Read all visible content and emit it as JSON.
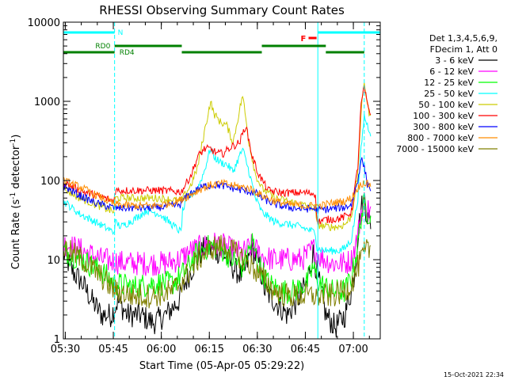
{
  "chart_data": {
    "type": "line",
    "title": "RHESSI Observing Summary Count Rates",
    "xlabel": "Start Time (05-Apr-05 05:29:22)",
    "ylabel_main": "Count Rate (s",
    "ylabel_sup": "-1",
    "ylabel_mid": " detector",
    "ylabel_sup2": "-1",
    "ylabel_end": ")",
    "footer": "15-Oct-2021 22:34",
    "y_scale": "log",
    "ylim": [
      1,
      10000
    ],
    "xlim_minutes": [
      0,
      99
    ],
    "x_ticks": [
      {
        "m": 0.6,
        "label": "05:30"
      },
      {
        "m": 15.6,
        "label": "05:45"
      },
      {
        "m": 30.6,
        "label": "06:00"
      },
      {
        "m": 45.6,
        "label": "06:15"
      },
      {
        "m": 60.6,
        "label": "06:30"
      },
      {
        "m": 75.6,
        "label": "06:45"
      },
      {
        "m": 90.6,
        "label": "07:00"
      }
    ],
    "y_ticks": [
      {
        "v": 1,
        "label": "1"
      },
      {
        "v": 10,
        "label": "10"
      },
      {
        "v": 100,
        "label": "100"
      },
      {
        "v": 1000,
        "label": "1000"
      },
      {
        "v": 10000,
        "label": "10000"
      }
    ],
    "legend_header": [
      "Det 1,3,4,5,6,9,",
      "FDecim 1, Att 0"
    ],
    "legend_position": "right",
    "series": [
      {
        "name": "3 - 6 keV",
        "color": "#000000",
        "points": [
          [
            0,
            12
          ],
          [
            3,
            7
          ],
          [
            6,
            5
          ],
          [
            9,
            3
          ],
          [
            12,
            2
          ],
          [
            15,
            2
          ],
          [
            17,
            3
          ],
          [
            20,
            2
          ],
          [
            24,
            2
          ],
          [
            28,
            1.6
          ],
          [
            32,
            2
          ],
          [
            36,
            3
          ],
          [
            38,
            5
          ],
          [
            41,
            9
          ],
          [
            44,
            14
          ],
          [
            47,
            13
          ],
          [
            50,
            12
          ],
          [
            53,
            8
          ],
          [
            56,
            6
          ],
          [
            59,
            14
          ],
          [
            61,
            9
          ],
          [
            63,
            4
          ],
          [
            66,
            3
          ],
          [
            70,
            2
          ],
          [
            73,
            3
          ],
          [
            76,
            5
          ],
          [
            78,
            12
          ],
          [
            80,
            5
          ],
          [
            82,
            2
          ],
          [
            85,
            1.4
          ],
          [
            88,
            2
          ],
          [
            89,
            3
          ],
          [
            90,
            4
          ],
          [
            91,
            7
          ],
          [
            92,
            20
          ],
          [
            93,
            45
          ],
          [
            94,
            55
          ],
          [
            95,
            35
          ],
          [
            96,
            30
          ]
        ]
      },
      {
        "name": "6 - 12 keV",
        "color": "#ff00ff",
        "points": [
          [
            0,
            16
          ],
          [
            6,
            13
          ],
          [
            12,
            10
          ],
          [
            16,
            9.5
          ],
          [
            20,
            9
          ],
          [
            26,
            9
          ],
          [
            32,
            9
          ],
          [
            36,
            10
          ],
          [
            40,
            13
          ],
          [
            44,
            15
          ],
          [
            47,
            16
          ],
          [
            50,
            15
          ],
          [
            53,
            13
          ],
          [
            56,
            12
          ],
          [
            59,
            15
          ],
          [
            62,
            11
          ],
          [
            66,
            10
          ],
          [
            70,
            10
          ],
          [
            74,
            10
          ],
          [
            76,
            11
          ],
          [
            78,
            14
          ],
          [
            80,
            11
          ],
          [
            84,
            9
          ],
          [
            88,
            9
          ],
          [
            90,
            10
          ],
          [
            92,
            20
          ],
          [
            93,
            40
          ],
          [
            94,
            55
          ],
          [
            95,
            45
          ],
          [
            96,
            40
          ]
        ]
      },
      {
        "name": "12 - 25 keV",
        "color": "#00ff00",
        "points": [
          [
            0,
            13
          ],
          [
            6,
            10
          ],
          [
            12,
            7
          ],
          [
            16,
            5
          ],
          [
            22,
            4.5
          ],
          [
            28,
            5
          ],
          [
            34,
            5
          ],
          [
            38,
            7
          ],
          [
            41,
            11
          ],
          [
            44,
            14
          ],
          [
            47,
            15
          ],
          [
            50,
            13
          ],
          [
            53,
            10
          ],
          [
            56,
            8
          ],
          [
            59,
            17
          ],
          [
            61,
            9
          ],
          [
            64,
            5
          ],
          [
            68,
            4
          ],
          [
            72,
            4
          ],
          [
            76,
            5
          ],
          [
            78,
            8
          ],
          [
            80,
            5
          ],
          [
            84,
            4
          ],
          [
            88,
            4
          ],
          [
            90,
            6
          ],
          [
            92,
            15
          ],
          [
            93,
            35
          ],
          [
            94,
            50
          ],
          [
            95,
            40
          ],
          [
            96,
            38
          ]
        ]
      },
      {
        "name": "25 - 50 keV",
        "color": "#00ffff",
        "points": [
          [
            0,
            55
          ],
          [
            5,
            38
          ],
          [
            10,
            30
          ],
          [
            15.9,
            22
          ],
          [
            16.1,
            30
          ],
          [
            18,
            26
          ],
          [
            22,
            32
          ],
          [
            26,
            42
          ],
          [
            30,
            38
          ],
          [
            36.9,
            22
          ],
          [
            37.1,
            40
          ],
          [
            39,
            60
          ],
          [
            42,
            80
          ],
          [
            44,
            130
          ],
          [
            46,
            260
          ],
          [
            47,
            200
          ],
          [
            49,
            170
          ],
          [
            51,
            160
          ],
          [
            53,
            130
          ],
          [
            56,
            250
          ],
          [
            58,
            130
          ],
          [
            60,
            60
          ],
          [
            62,
            40
          ],
          [
            66,
            30
          ],
          [
            70,
            28
          ],
          [
            74,
            26
          ],
          [
            78.9,
            22
          ],
          [
            79.1,
            14
          ],
          [
            82,
            13
          ],
          [
            86,
            13
          ],
          [
            88,
            14
          ],
          [
            90,
            18
          ],
          [
            92,
            60
          ],
          [
            93,
            250
          ],
          [
            94,
            650
          ],
          [
            95,
            500
          ],
          [
            96,
            400
          ]
        ]
      },
      {
        "name": "50 - 100 keV",
        "color": "#cccc00",
        "points": [
          [
            0,
            80
          ],
          [
            5,
            60
          ],
          [
            10,
            50
          ],
          [
            15.9,
            40
          ],
          [
            16.1,
            60
          ],
          [
            20,
            60
          ],
          [
            26,
            60
          ],
          [
            30,
            60
          ],
          [
            36.9,
            55
          ],
          [
            37.1,
            58
          ],
          [
            40,
            90
          ],
          [
            42,
            150
          ],
          [
            44,
            400
          ],
          [
            46,
            1000
          ],
          [
            47,
            700
          ],
          [
            49,
            550
          ],
          [
            51,
            500
          ],
          [
            53,
            300
          ],
          [
            56,
            1200
          ],
          [
            58,
            300
          ],
          [
            60,
            120
          ],
          [
            62,
            80
          ],
          [
            66,
            60
          ],
          [
            70,
            55
          ],
          [
            74,
            50
          ],
          [
            78.9,
            45
          ],
          [
            79.1,
            28
          ],
          [
            82,
            26
          ],
          [
            86,
            26
          ],
          [
            88,
            28
          ],
          [
            90,
            35
          ],
          [
            92,
            120
          ],
          [
            93,
            700
          ],
          [
            94,
            1800
          ],
          [
            95,
            900
          ],
          [
            96,
            600
          ]
        ]
      },
      {
        "name": "100 - 300 keV",
        "color": "#ff0000",
        "points": [
          [
            0,
            95
          ],
          [
            5,
            75
          ],
          [
            10,
            65
          ],
          [
            15.9,
            55
          ],
          [
            16.1,
            75
          ],
          [
            20,
            75
          ],
          [
            26,
            75
          ],
          [
            30,
            75
          ],
          [
            36.9,
            72
          ],
          [
            37.1,
            75
          ],
          [
            40,
            120
          ],
          [
            42,
            200
          ],
          [
            44,
            250
          ],
          [
            46,
            250
          ],
          [
            48,
            220
          ],
          [
            50,
            220
          ],
          [
            52,
            260
          ],
          [
            55,
            300
          ],
          [
            57,
            500
          ],
          [
            59,
            200
          ],
          [
            61,
            120
          ],
          [
            64,
            75
          ],
          [
            68,
            70
          ],
          [
            72,
            70
          ],
          [
            76,
            70
          ],
          [
            78.9,
            68
          ],
          [
            79.1,
            30
          ],
          [
            82,
            32
          ],
          [
            86,
            33
          ],
          [
            88,
            35
          ],
          [
            90,
            40
          ],
          [
            92,
            150
          ],
          [
            93,
            900
          ],
          [
            94,
            1500
          ],
          [
            95,
            900
          ],
          [
            96,
            700
          ]
        ]
      },
      {
        "name": "300 - 800 keV",
        "color": "#0000ff",
        "points": [
          [
            0,
            85
          ],
          [
            5,
            65
          ],
          [
            10,
            52
          ],
          [
            15.9,
            45
          ],
          [
            16.1,
            45
          ],
          [
            22,
            45
          ],
          [
            28,
            45
          ],
          [
            34,
            48
          ],
          [
            36.9,
            50
          ],
          [
            37.1,
            55
          ],
          [
            40,
            70
          ],
          [
            44,
            85
          ],
          [
            48,
            88
          ],
          [
            52,
            82
          ],
          [
            56,
            75
          ],
          [
            60,
            70
          ],
          [
            62,
            60
          ],
          [
            66,
            50
          ],
          [
            70,
            46
          ],
          [
            74,
            44
          ],
          [
            78.9,
            44
          ],
          [
            79.1,
            42
          ],
          [
            84,
            44
          ],
          [
            88,
            46
          ],
          [
            90,
            50
          ],
          [
            92,
            100
          ],
          [
            93,
            190
          ],
          [
            94,
            150
          ],
          [
            95,
            90
          ],
          [
            96,
            80
          ]
        ]
      },
      {
        "name": "800 - 7000 keV",
        "color": "#ff8c00",
        "points": [
          [
            0,
            100
          ],
          [
            6,
            80
          ],
          [
            12,
            60
          ],
          [
            16,
            50
          ],
          [
            22,
            48
          ],
          [
            28,
            48
          ],
          [
            34,
            52
          ],
          [
            38,
            60
          ],
          [
            42,
            75
          ],
          [
            46,
            88
          ],
          [
            50,
            92
          ],
          [
            54,
            85
          ],
          [
            58,
            80
          ],
          [
            62,
            65
          ],
          [
            66,
            55
          ],
          [
            70,
            50
          ],
          [
            76,
            48
          ],
          [
            80,
            48
          ],
          [
            84,
            52
          ],
          [
            88,
            55
          ],
          [
            90,
            60
          ],
          [
            92,
            80
          ],
          [
            93,
            90
          ],
          [
            94,
            95
          ],
          [
            95,
            90
          ],
          [
            96,
            88
          ]
        ]
      },
      {
        "name": "7000 - 15000 keV",
        "color": "#7f7f00",
        "points": [
          [
            0,
            14
          ],
          [
            6,
            10
          ],
          [
            12,
            6
          ],
          [
            16,
            4
          ],
          [
            22,
            3.5
          ],
          [
            28,
            3.5
          ],
          [
            34,
            4
          ],
          [
            38,
            6
          ],
          [
            42,
            10
          ],
          [
            46,
            14
          ],
          [
            50,
            15
          ],
          [
            54,
            12
          ],
          [
            58,
            9
          ],
          [
            62,
            6
          ],
          [
            66,
            4
          ],
          [
            70,
            3.5
          ],
          [
            76,
            3.5
          ],
          [
            80,
            3.5
          ],
          [
            84,
            3.5
          ],
          [
            88,
            4
          ],
          [
            90,
            5
          ],
          [
            92,
            8
          ],
          [
            93,
            10
          ],
          [
            94,
            12
          ],
          [
            95,
            13
          ],
          [
            96,
            14
          ]
        ]
      }
    ],
    "annotations": {
      "night_markers": [
        {
          "label": "N",
          "start": 0,
          "end": 16
        },
        {
          "label": "",
          "start": 79.5,
          "end": 99
        }
      ],
      "flare_marker": {
        "label": "F",
        "start": 76.6,
        "end": 79.1
      },
      "rd_bars": [
        {
          "start": 0,
          "end": 16,
          "level": 1
        },
        {
          "start": 16,
          "end": 37,
          "level": 2
        },
        {
          "start": 37,
          "end": 62,
          "level": 1
        },
        {
          "start": 62,
          "end": 82,
          "level": 2
        },
        {
          "start": 82,
          "end": 94,
          "level": 1
        }
      ],
      "rd_labels": [
        {
          "label": "RD0",
          "at": 10
        },
        {
          "label": "RD4",
          "at": 17.5
        }
      ]
    }
  }
}
